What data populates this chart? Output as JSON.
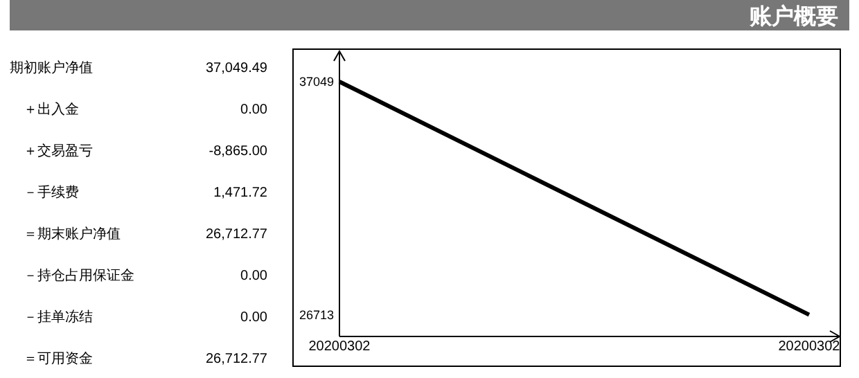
{
  "chart_data": [
    {
      "type": "other",
      "title": "账户概要",
      "categories": [
        "期初账户净值",
        "＋出入金",
        "＋交易盈亏",
        "－手续费",
        "＝期末账户净值",
        "－持仓占用保证金",
        "－挂单冻结",
        "＝可用资金"
      ],
      "value_labels": [
        "37,049.49",
        "0.00",
        "-8,865.00",
        "1,471.72",
        "26,712.77",
        "0.00",
        "0.00",
        "26,712.77"
      ]
    },
    {
      "type": "line",
      "categories": [
        "20200302",
        "20200302"
      ],
      "series": [
        {
          "color": "#000000",
          "values": [
            37049,
            26713
          ]
        }
      ],
      "ylim": [
        25750,
        38400
      ],
      "yticks": [
        37049,
        26713
      ],
      "grid": false,
      "marker": "none",
      "line_style": "solid"
    }
  ]
}
